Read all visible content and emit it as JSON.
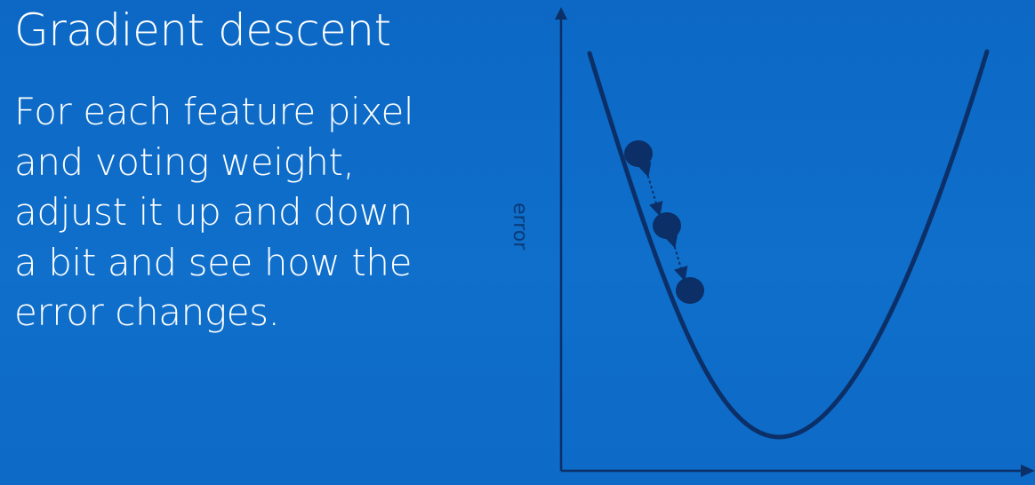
{
  "slide": {
    "title": "Gradient descent",
    "body_lines": [
      "For each feature pixel",
      "and voting weight,",
      "adjust it up and down",
      "a bit and see how the",
      "error changes."
    ]
  },
  "diagram": {
    "y_axis_label": "error",
    "colors": {
      "background": "#0f6cc7",
      "curve": "#0b2f66",
      "axis": "#0b2f66",
      "text": "#ffffff"
    },
    "curve_type": "u-shaped",
    "points_count": 3
  }
}
